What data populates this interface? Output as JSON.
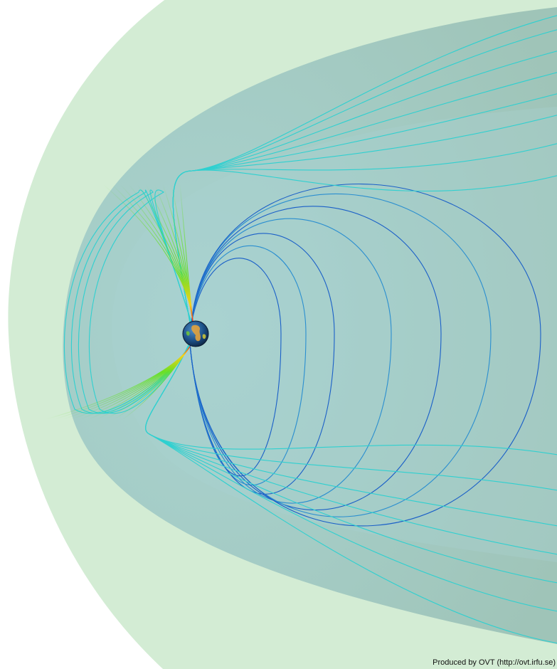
{
  "credit": "Produced by OVT (http://ovt.irfu.se)",
  "colors": {
    "background": "#ffffff",
    "bow_shock_fill": "#d3ecd4",
    "magnetopause_fill": "#a5cbbf",
    "inner_fill": "#a8d2d0",
    "field_line_closed": "#2a8ed0",
    "field_line_open": "#2fd0d0",
    "field_line_deep": "#1a5fc8",
    "polar_cusp": "#66e022",
    "cusp_foot": "#ee3a10",
    "earth_ocean": "#1c4f86",
    "earth_land": "#e2a23c"
  },
  "icons": {
    "earth": "earth-globe-icon"
  }
}
